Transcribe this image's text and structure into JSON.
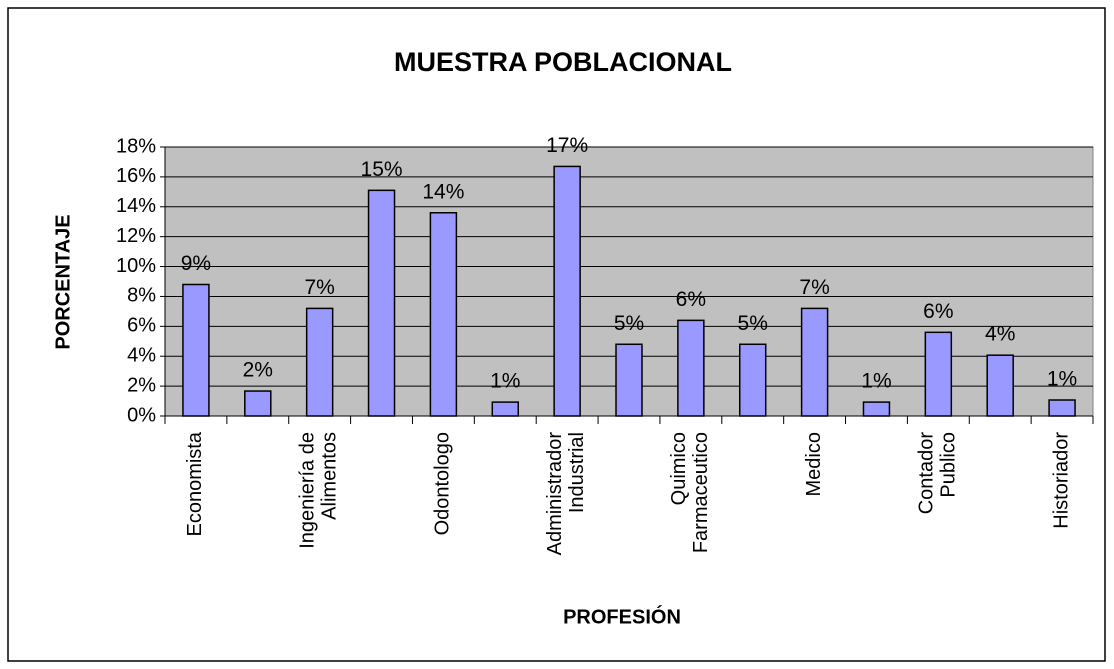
{
  "chart_data": {
    "type": "bar",
    "title": "MUESTRA POBLACIONAL",
    "x_label": "PROFESIÓN",
    "y_label": "PORCENTAJE",
    "categories": [
      "Economista",
      null,
      "Ingeniería de\nAlimentos",
      null,
      "Odontologo",
      null,
      "Administrador\nIndustrial",
      null,
      "Quimico\nFarmaceutico",
      null,
      "Medico",
      null,
      "Contador\nPublico",
      null,
      "Historiador"
    ],
    "values": [
      8.8,
      1.67,
      7.2,
      15.1,
      13.6,
      0.93,
      16.7,
      4.8,
      6.4,
      4.8,
      7.2,
      0.93,
      5.6,
      4.07,
      1.07
    ],
    "value_labels": [
      "9%",
      "2%",
      "7%",
      "15%",
      "14%",
      "1%",
      "17%",
      "5%",
      "6%",
      "5%",
      "7%",
      "1%",
      "6%",
      "4%",
      "1%"
    ],
    "color": "#9999ff",
    "ylim": [
      0,
      18
    ],
    "yticks": [
      {
        "value": 0,
        "label": "0%"
      },
      {
        "value": 2,
        "label": "2%"
      },
      {
        "value": 4,
        "label": "4%"
      },
      {
        "value": 6,
        "label": "6%"
      },
      {
        "value": 8,
        "label": "8%"
      },
      {
        "value": 10,
        "label": "10%"
      },
      {
        "value": 12,
        "label": "12%"
      },
      {
        "value": 14,
        "label": "14%"
      },
      {
        "value": 16,
        "label": "16%"
      },
      {
        "value": 18,
        "label": "18%"
      }
    ],
    "grid": true
  }
}
